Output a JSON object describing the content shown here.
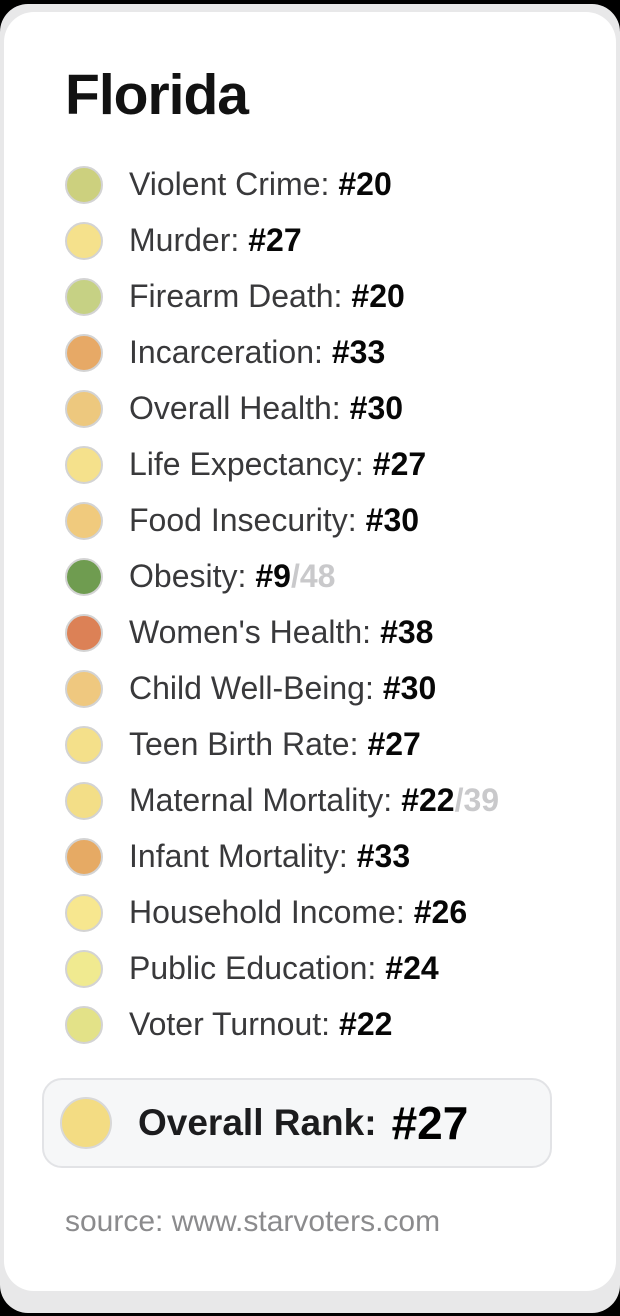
{
  "card": {
    "title": "Florida",
    "metrics": [
      {
        "label": "Violent Crime:",
        "rank": "#20",
        "denominator": "",
        "dot_color": "#ccd07e"
      },
      {
        "label": "Murder:",
        "rank": "#27",
        "denominator": "",
        "dot_color": "#f5e18c"
      },
      {
        "label": "Firearm Death:",
        "rank": "#20",
        "denominator": "",
        "dot_color": "#c6d184"
      },
      {
        "label": "Incarceration:",
        "rank": "#33",
        "denominator": "",
        "dot_color": "#e7a966"
      },
      {
        "label": "Overall Health:",
        "rank": "#30",
        "denominator": "",
        "dot_color": "#edc87e"
      },
      {
        "label": "Life Expectancy:",
        "rank": "#27",
        "denominator": "",
        "dot_color": "#f5e18c"
      },
      {
        "label": "Food Insecurity:",
        "rank": "#30",
        "denominator": "",
        "dot_color": "#f0ca7d"
      },
      {
        "label": "Obesity:",
        "rank": "#9",
        "denominator": "/48",
        "dot_color": "#6f9c50"
      },
      {
        "label": "Women's Health:",
        "rank": "#38",
        "denominator": "",
        "dot_color": "#dc8156"
      },
      {
        "label": "Child Well-Being:",
        "rank": "#30",
        "denominator": "",
        "dot_color": "#efc87f"
      },
      {
        "label": "Teen Birth Rate:",
        "rank": "#27",
        "denominator": "",
        "dot_color": "#f4e08a"
      },
      {
        "label": "Maternal Mortality:",
        "rank": "#22",
        "denominator": "/39",
        "dot_color": "#f3de87"
      },
      {
        "label": "Infant Mortality:",
        "rank": "#33",
        "denominator": "",
        "dot_color": "#e6aa64"
      },
      {
        "label": "Household Income:",
        "rank": "#26",
        "denominator": "",
        "dot_color": "#f7e78f"
      },
      {
        "label": "Public Education:",
        "rank": "#24",
        "denominator": "",
        "dot_color": "#f0ea90"
      },
      {
        "label": "Voter Turnout:",
        "rank": "#22",
        "denominator": "",
        "dot_color": "#e3e288"
      }
    ],
    "overall": {
      "label": "Overall Rank:",
      "rank": "#27",
      "dot_color": "#f3dc83"
    },
    "source": "source: www.starvoters.com"
  },
  "colors": {
    "page_background": "#e8e8e9",
    "card_background": "#ffffff",
    "outer_frame": "#000000",
    "label_text": "#39393b",
    "rank_text": "#070707",
    "denominator_text": "#c9c9cb",
    "overall_box_background": "#f6f7f8",
    "overall_box_border": "#e2e3e6",
    "source_text": "#8b8b8d"
  },
  "chart_data": {
    "type": "table",
    "title": "Florida",
    "categories": [
      "Violent Crime",
      "Murder",
      "Firearm Death",
      "Incarceration",
      "Overall Health",
      "Life Expectancy",
      "Food Insecurity",
      "Obesity",
      "Women's Health",
      "Child Well-Being",
      "Teen Birth Rate",
      "Maternal Mortality",
      "Infant Mortality",
      "Household Income",
      "Public Education",
      "Voter Turnout"
    ],
    "values": [
      20,
      27,
      20,
      33,
      30,
      27,
      30,
      9,
      38,
      30,
      27,
      22,
      33,
      26,
      24,
      22
    ],
    "denominators": {
      "Obesity": 48,
      "Maternal Mortality": 39
    },
    "overall_rank": 27,
    "legend_position": "none",
    "notes": "State ranking card; each row has a color-coded dot from green (good rank) through yellow to orange/red (poor rank)."
  }
}
